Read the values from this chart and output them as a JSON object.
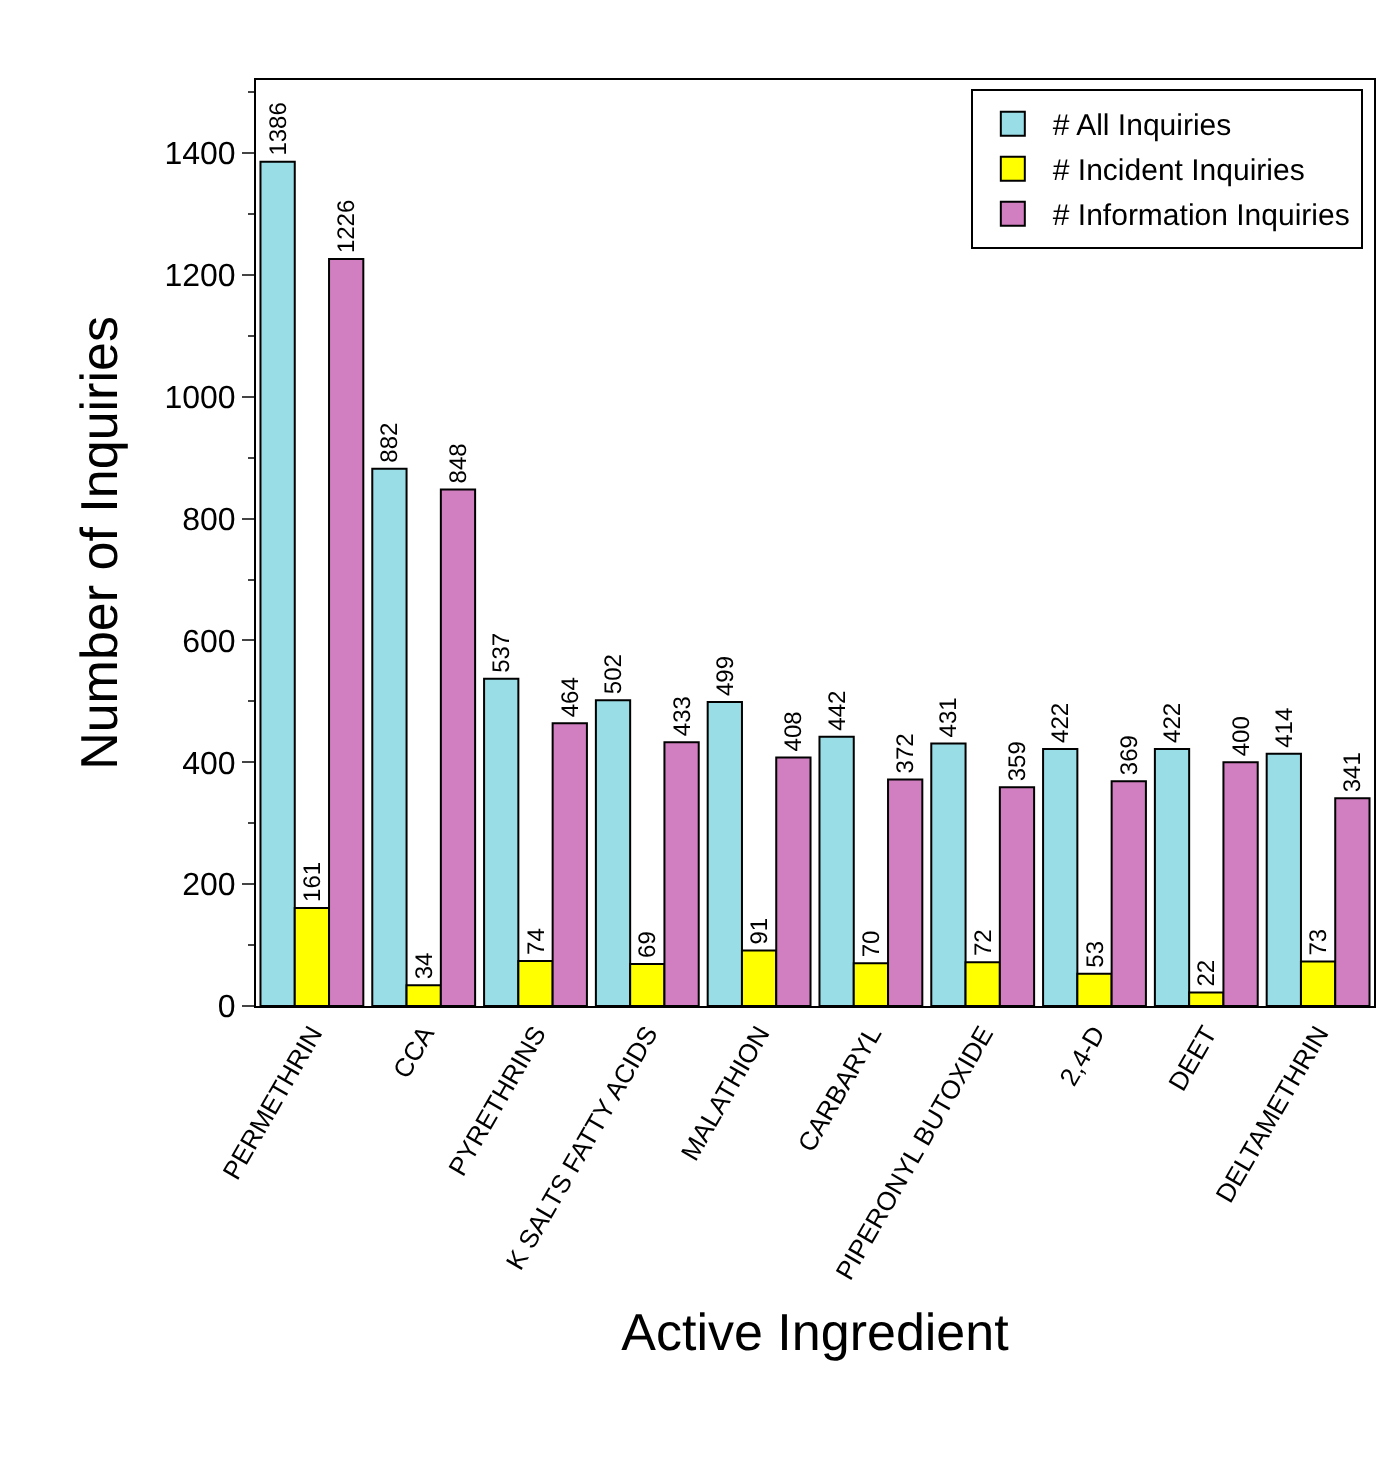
{
  "chart_data": {
    "type": "bar",
    "xlabel": "Active Ingredient",
    "ylabel": "Number of Inquiries",
    "categories": [
      "PERMETHRIN",
      "CCA",
      "PYRETHRINS",
      "K SALTS FATTY ACIDS",
      "MALATHION",
      "CARBARYL",
      "PIPERONYL BUTOXIDE",
      "2,4-D",
      "DEET",
      "DELTAMETHRIN"
    ],
    "series": [
      {
        "name": "# All Inquiries",
        "color": "#99dde6",
        "values": [
          1386,
          882,
          537,
          502,
          499,
          442,
          431,
          422,
          422,
          414
        ]
      },
      {
        "name": "# Incident Inquiries",
        "color": "#ffff00",
        "values": [
          161,
          34,
          74,
          69,
          91,
          70,
          72,
          53,
          22,
          73
        ]
      },
      {
        "name": "# Information Inquiries",
        "color": "#d17fc0",
        "values": [
          1226,
          848,
          464,
          433,
          408,
          372,
          359,
          369,
          400,
          341
        ]
      }
    ],
    "ylim": [
      0,
      1520
    ],
    "yticks": [
      0,
      200,
      400,
      600,
      800,
      1000,
      1200,
      1400
    ],
    "data_labels": true,
    "legend": "top right"
  }
}
